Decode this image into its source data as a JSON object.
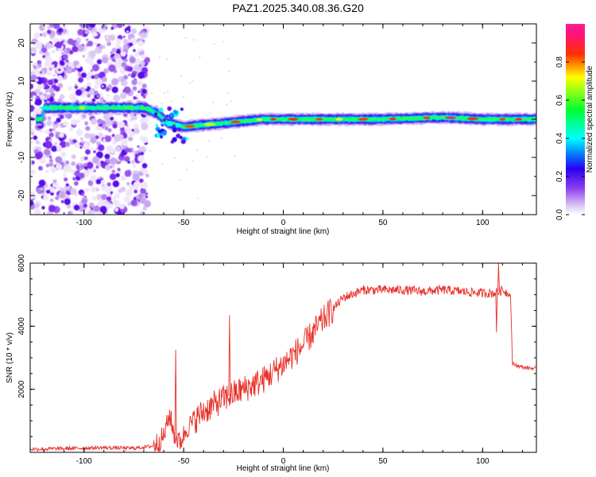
{
  "title": "PAZ1.2025.340.08.36.G20",
  "chart_data": [
    {
      "type": "heatmap",
      "xlabel": "Height of straight line (km)",
      "ylabel": "Frequency (Hz)",
      "xlim": [
        -127,
        127
      ],
      "ylim": [
        -25,
        25
      ],
      "xticks": [
        "-100",
        "-50",
        "0",
        "50",
        "100"
      ],
      "yticks": [
        "-20",
        "-10",
        "0",
        "10",
        "20"
      ],
      "colorbar": {
        "label": "Normalized spectral amplitude",
        "range": [
          0,
          1
        ],
        "ticks": [
          "0.0",
          "0.2",
          "0.4",
          "0.6",
          "0.8"
        ],
        "colormap": "rainbow (white-purple-blue-cyan-green-yellow-red-pink)"
      },
      "dominant_frequency_track": {
        "x": [
          -120,
          -100,
          -80,
          -70,
          -63,
          -58,
          -50,
          -40,
          -30,
          -20,
          -10,
          0,
          20,
          50,
          80,
          100,
          125
        ],
        "y": [
          3,
          3,
          3,
          3,
          1.5,
          -1,
          -2,
          -1.5,
          -1,
          -0.5,
          0,
          0,
          0,
          0,
          0.5,
          0,
          0
        ]
      }
    },
    {
      "type": "line",
      "xlabel": "Height of straight line (km)",
      "ylabel": "SNR (10 * v/v)",
      "xlim": [
        -127,
        127
      ],
      "ylim": [
        0,
        6000
      ],
      "xticks": [
        "-100",
        "-50",
        "0",
        "50",
        "100"
      ],
      "yticks": [
        "2000",
        "4000",
        "6000"
      ],
      "color": "#e8302a",
      "series": [
        {
          "x": [
            -127,
            -110,
            -90,
            -75,
            -65,
            -60,
            -57,
            -55,
            -52,
            -48,
            -40,
            -30,
            -20,
            -10,
            0,
            10,
            20,
            30,
            40,
            50,
            60,
            70,
            80,
            90,
            100,
            106,
            110,
            114,
            115,
            120,
            127
          ],
          "y": [
            100,
            120,
            150,
            130,
            200,
            500,
            1200,
            600,
            300,
            800,
            1300,
            1700,
            2000,
            2300,
            2800,
            3400,
            4200,
            4900,
            5150,
            5150,
            5150,
            5100,
            5150,
            5100,
            5050,
            5050,
            5150,
            5000,
            2800,
            2700,
            2650
          ]
        }
      ],
      "spikes": [
        {
          "x": -54,
          "y": 3250
        },
        {
          "x": -27,
          "y": 4350
        },
        {
          "x": 107,
          "y": 3800
        },
        {
          "x": 108,
          "y": 6000
        }
      ]
    }
  ]
}
